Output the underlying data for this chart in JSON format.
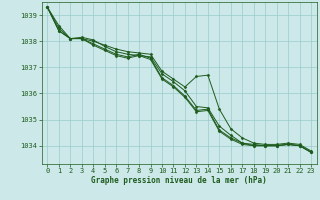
{
  "title": "Graphe pression niveau de la mer (hPa)",
  "bg_color": "#cce8e8",
  "grid_color": "#99cccc",
  "line_color": "#1e5c1e",
  "marker_color": "#1e5c1e",
  "text_color": "#1e5c1e",
  "xlim": [
    -0.5,
    23.5
  ],
  "ylim": [
    1033.3,
    1039.5
  ],
  "yticks": [
    1034,
    1035,
    1036,
    1037,
    1038,
    1039
  ],
  "xticks": [
    0,
    1,
    2,
    3,
    4,
    5,
    6,
    7,
    8,
    9,
    10,
    11,
    12,
    13,
    14,
    15,
    16,
    17,
    18,
    19,
    20,
    21,
    22,
    23
  ],
  "series": [
    [
      1039.3,
      1038.6,
      1038.1,
      1038.1,
      1038.0,
      1037.85,
      1037.7,
      1037.6,
      1037.55,
      1037.5,
      1036.85,
      1036.55,
      1036.25,
      1036.65,
      1036.7,
      1035.4,
      1034.65,
      1034.3,
      1034.1,
      1034.05,
      1034.05,
      1034.1,
      1034.05,
      1033.8
    ],
    [
      1039.3,
      1038.5,
      1038.1,
      1038.15,
      1038.05,
      1037.8,
      1037.6,
      1037.5,
      1037.45,
      1037.4,
      1036.75,
      1036.45,
      1036.1,
      1035.5,
      1035.45,
      1034.75,
      1034.4,
      1034.1,
      1034.05,
      1034.0,
      1034.0,
      1034.05,
      1034.0,
      1033.75
    ],
    [
      1039.3,
      1038.4,
      1038.1,
      1038.1,
      1037.9,
      1037.7,
      1037.5,
      1037.4,
      1037.5,
      1037.35,
      1036.6,
      1036.3,
      1035.9,
      1035.35,
      1035.4,
      1034.6,
      1034.3,
      1034.1,
      1034.0,
      1034.0,
      1034.0,
      1034.05,
      1034.0,
      1033.75
    ],
    [
      1039.3,
      1038.4,
      1038.1,
      1038.1,
      1037.85,
      1037.65,
      1037.45,
      1037.35,
      1037.45,
      1037.3,
      1036.55,
      1036.25,
      1035.85,
      1035.3,
      1035.35,
      1034.55,
      1034.25,
      1034.05,
      1034.0,
      1034.0,
      1034.0,
      1034.05,
      1034.0,
      1033.75
    ]
  ]
}
